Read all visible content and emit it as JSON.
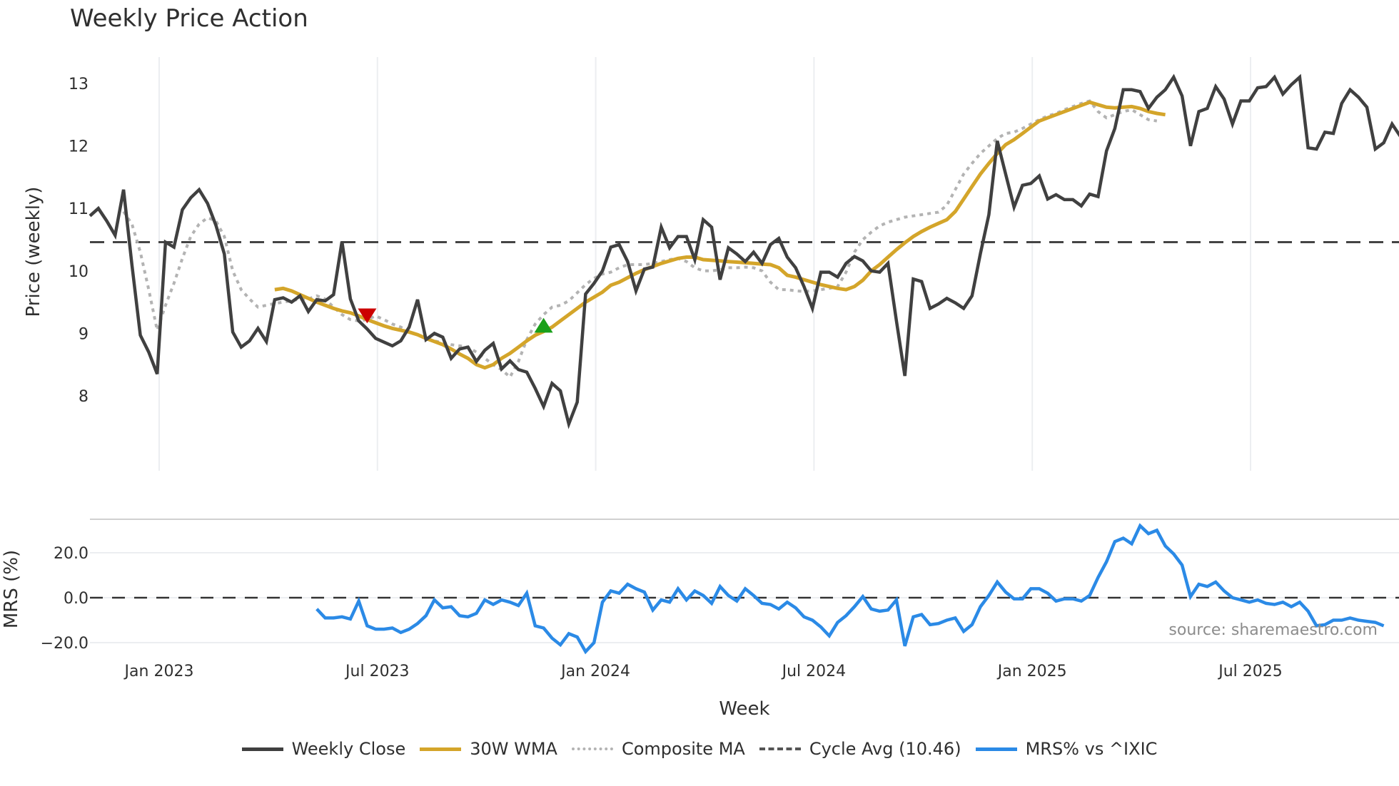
{
  "title": "Weekly Price Action",
  "source_note": "source: sharemaestro.com",
  "price_panel": {
    "ylabel": "Price (weekly)",
    "yticks": [
      "13",
      "12",
      "11",
      "10",
      "9",
      "8"
    ]
  },
  "mrs_panel": {
    "ylabel": "MRS (%)",
    "yticks": [
      "20.0",
      "0.0",
      "−20.0"
    ]
  },
  "xaxis": {
    "label": "Week",
    "ticks": [
      "Jan 2023",
      "Jul 2023",
      "Jan 2024",
      "Jul 2024",
      "Jan 2025",
      "Jul 2025"
    ]
  },
  "legend": [
    {
      "label": "Weekly Close",
      "color": "#404040",
      "style": "solid"
    },
    {
      "label": "30W WMA",
      "color": "#d4a52a",
      "style": "solid"
    },
    {
      "label": "Composite MA",
      "color": "#b3b3b3",
      "style": "dotted"
    },
    {
      "label": "Cycle Avg (10.46)",
      "color": "#555555",
      "style": "dashed"
    },
    {
      "label": "MRS% vs ^IXIC",
      "color": "#2b8ae6",
      "style": "solid"
    }
  ],
  "chart_data": [
    {
      "type": "line",
      "title": "Weekly Price Action",
      "xlabel": "Week",
      "ylabel": "Price (weekly)",
      "ylim": [
        7.3,
        13.4
      ],
      "grid": "vertical",
      "legend_position": "bottom",
      "x_tick_labels": [
        "Jan 2023",
        "Jul 2023",
        "Jan 2024",
        "Jul 2024",
        "Jan 2025",
        "Jul 2025"
      ],
      "start_week_offset": -8,
      "hlines": [
        {
          "name": "Cycle Avg (10.46)",
          "value": 10.46
        }
      ],
      "markers": [
        {
          "type": "sell",
          "shape": "triangle-down",
          "color": "#cc0000",
          "week": 33,
          "value": 9.28
        },
        {
          "type": "buy",
          "shape": "triangle-up",
          "color": "#1aa01a",
          "week": 54,
          "value": 9.13
        }
      ],
      "series": [
        {
          "name": "Weekly Close",
          "values": [
            10.88,
            11.0,
            10.8,
            10.57,
            11.3,
            10.1,
            8.97,
            8.7,
            8.35,
            10.46,
            10.38,
            10.98,
            11.17,
            11.3,
            11.08,
            10.73,
            10.27,
            9.02,
            8.78,
            8.88,
            9.08,
            8.87,
            9.54,
            9.57,
            9.5,
            9.6,
            9.35,
            9.54,
            9.52,
            9.62,
            10.47,
            9.55,
            9.2,
            9.07,
            8.92,
            8.86,
            8.8,
            8.88,
            9.1,
            9.54,
            8.9,
            9.0,
            8.94,
            8.6,
            8.75,
            8.78,
            8.55,
            8.73,
            8.84,
            8.43,
            8.56,
            8.42,
            8.38,
            8.12,
            7.83,
            8.2,
            8.08,
            7.55,
            7.9,
            9.63,
            9.8,
            10.0,
            10.38,
            10.42,
            10.15,
            9.68,
            10.03,
            10.06,
            10.7,
            10.37,
            10.55,
            10.55,
            10.18,
            10.82,
            10.7,
            9.86,
            10.37,
            10.27,
            10.15,
            10.3,
            10.12,
            10.42,
            10.52,
            10.22,
            10.05,
            9.75,
            9.4,
            9.98,
            9.98,
            9.9,
            10.12,
            10.23,
            10.16,
            10.0,
            9.98,
            10.12,
            9.2,
            8.32,
            9.87,
            9.83,
            9.4,
            9.47,
            9.56,
            9.49,
            9.4,
            9.6,
            10.28,
            10.9,
            12.08,
            11.55,
            11.02,
            11.37,
            11.4,
            11.52,
            11.15,
            11.22,
            11.14,
            11.14,
            11.04,
            11.23,
            11.19,
            11.92,
            12.28,
            12.9,
            12.9,
            12.87,
            12.6,
            12.78,
            12.9,
            13.1,
            12.8,
            12.0,
            12.55,
            12.6,
            12.95,
            12.75,
            12.35,
            12.72,
            12.72,
            12.93,
            12.95,
            13.1,
            12.83,
            12.98,
            13.1,
            11.97,
            11.95,
            12.22,
            12.2,
            12.68,
            12.9,
            12.78,
            12.62,
            11.95,
            12.05,
            12.35,
            12.15
          ]
        },
        {
          "name": "30W WMA",
          "start_week": 22,
          "values": [
            9.7,
            9.72,
            9.68,
            9.62,
            9.56,
            9.5,
            9.45,
            9.4,
            9.36,
            9.33,
            9.28,
            9.22,
            9.17,
            9.12,
            9.08,
            9.05,
            9.02,
            8.98,
            8.92,
            8.87,
            8.82,
            8.75,
            8.67,
            8.6,
            8.5,
            8.45,
            8.5,
            8.6,
            8.68,
            8.78,
            8.88,
            8.97,
            9.03,
            9.1,
            9.2,
            9.3,
            9.4,
            9.5,
            9.58,
            9.66,
            9.77,
            9.82,
            9.89,
            9.96,
            10.02,
            10.07,
            10.12,
            10.16,
            10.2,
            10.22,
            10.22,
            10.18,
            10.17,
            10.16,
            10.15,
            10.14,
            10.13,
            10.12,
            10.11,
            10.1,
            10.05,
            9.93,
            9.9,
            9.86,
            9.82,
            9.78,
            9.75,
            9.72,
            9.7,
            9.75,
            9.85,
            10.0,
            10.1,
            10.22,
            10.34,
            10.45,
            10.55,
            10.63,
            10.7,
            10.76,
            10.82,
            10.95,
            11.15,
            11.35,
            11.55,
            11.72,
            11.88,
            12.02,
            12.1,
            12.2,
            12.3,
            12.4,
            12.45,
            12.5,
            12.55,
            12.6,
            12.65,
            12.7,
            12.66,
            12.62,
            12.61,
            12.62,
            12.63,
            12.6,
            12.55,
            12.52,
            12.5
          ]
        },
        {
          "name": "Composite MA",
          "start_week": 4,
          "values": [
            10.95,
            10.75,
            10.3,
            9.7,
            9.05,
            9.45,
            9.8,
            10.2,
            10.55,
            10.75,
            10.85,
            10.8,
            10.55,
            10.0,
            9.7,
            9.55,
            9.42,
            9.45,
            9.48,
            9.5,
            9.52,
            9.55,
            9.55,
            9.6,
            9.55,
            9.42,
            9.3,
            9.22,
            9.2,
            9.22,
            9.28,
            9.22,
            9.15,
            9.1,
            9.02,
            8.98,
            8.92,
            8.88,
            8.85,
            8.82,
            8.8,
            8.78,
            8.7,
            8.6,
            8.5,
            8.42,
            8.3,
            8.55,
            8.9,
            9.15,
            9.3,
            9.42,
            9.45,
            9.52,
            9.65,
            9.78,
            9.88,
            9.95,
            9.98,
            10.05,
            10.1,
            10.1,
            10.1,
            10.12,
            10.15,
            10.18,
            10.2,
            10.15,
            10.05,
            10.0,
            10.0,
            10.02,
            10.05,
            10.05,
            10.06,
            10.05,
            10.0,
            9.82,
            9.7,
            9.7,
            9.68,
            9.67,
            9.68,
            9.7,
            9.72,
            9.75,
            9.98,
            10.3,
            10.5,
            10.62,
            10.72,
            10.78,
            10.82,
            10.86,
            10.88,
            10.9,
            10.92,
            10.94,
            11.05,
            11.3,
            11.55,
            11.72,
            11.88,
            12.0,
            12.12,
            12.2,
            12.22,
            12.28,
            12.35,
            12.42,
            12.48,
            12.52,
            12.58,
            12.63,
            12.68,
            12.72,
            12.55,
            12.45,
            12.5,
            12.55,
            12.58,
            12.5,
            12.42,
            12.4
          ]
        },
        {
          "name": "Cycle Avg (10.46)",
          "constant": 10.46
        }
      ]
    },
    {
      "type": "line",
      "title": "",
      "ylabel": "MRS (%)",
      "ylim": [
        -27,
        35
      ],
      "grid": "horizontal",
      "hlines": [
        {
          "name": "zero",
          "value": 0.0
        }
      ],
      "series": [
        {
          "name": "MRS% vs ^IXIC",
          "start_week": 27,
          "values": [
            -5,
            -9,
            -9,
            -8.5,
            -9.5,
            -1.5,
            -12.5,
            -14,
            -14,
            -13.5,
            -15.5,
            -14,
            -11.5,
            -8,
            -1,
            -4.5,
            -4,
            -8,
            -8.5,
            -7,
            -1,
            -3,
            -1,
            -2,
            -3.5,
            2,
            -12.5,
            -13.5,
            -18,
            -21,
            -16,
            -17.5,
            -24,
            -20,
            -2,
            3,
            2,
            6,
            4,
            2.5,
            -5.5,
            -1,
            -2,
            4,
            -1,
            3,
            1,
            -2.5,
            5,
            1,
            -1.5,
            4,
            1,
            -2.5,
            -3,
            -5,
            -2,
            -4.5,
            -8.5,
            -10,
            -13,
            -17,
            -11,
            -8,
            -4,
            0.5,
            -5,
            -6,
            -5.5,
            -1,
            -21.5,
            -8.5,
            -7.5,
            -12,
            -11.5,
            -10,
            -9,
            -15,
            -12,
            -4,
            1,
            7,
            2.5,
            -0.5,
            -0.5,
            4,
            4,
            2,
            -1.5,
            -0.5,
            -0.5,
            -1.5,
            1,
            9,
            16,
            25,
            26.5,
            24,
            32,
            28.5,
            30,
            23,
            19.5,
            14.5,
            0.5,
            6,
            5,
            7,
            3,
            0,
            -1,
            -2,
            -1,
            -2.5,
            -3,
            -2,
            -4,
            -2,
            -6,
            -12.5,
            -12,
            -10,
            -10,
            -9,
            -10,
            -10.5,
            -11,
            -12.5
          ]
        }
      ]
    }
  ]
}
